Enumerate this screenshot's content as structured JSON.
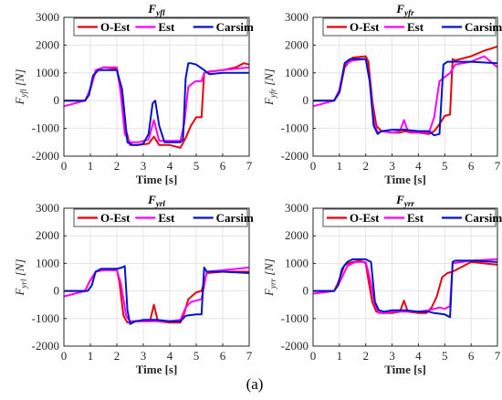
{
  "caption": "(a)",
  "colors": {
    "O-Est": "#e8000b",
    "Est": "#ff00ff",
    "Carsim": "#0015c8"
  },
  "chart_data": [
    {
      "type": "line",
      "title": "F_yfl",
      "xlabel": "Time [s]",
      "ylabel": "F_yfl [N]",
      "xlim": [
        0,
        7
      ],
      "ylim": [
        -2000,
        3000
      ],
      "xticks": [
        "0",
        "1",
        "2",
        "3",
        "4",
        "5",
        "6",
        "7"
      ],
      "yticks": [
        "-2000",
        "-1000",
        "0",
        "1000",
        "2000",
        "3000"
      ],
      "grid": true,
      "legend": "top, horizontal",
      "series": [
        {
          "name": "O-Est",
          "x": [
            0,
            0.8,
            0.95,
            1.2,
            1.5,
            2.0,
            2.1,
            2.3,
            2.5,
            2.8,
            3.2,
            3.4,
            3.6,
            4.0,
            4.4,
            4.6,
            4.8,
            5.0,
            5.2,
            5.3,
            5.5,
            6.0,
            6.5,
            6.8,
            7.0
          ],
          "y": [
            0,
            0,
            300,
            1050,
            1200,
            1150,
            600,
            -900,
            -1600,
            -1600,
            -1550,
            -1300,
            -1600,
            -1600,
            -1700,
            -1350,
            -900,
            -600,
            -600,
            1000,
            1050,
            1100,
            1200,
            1350,
            1300
          ]
        },
        {
          "name": "Est",
          "x": [
            0,
            0.8,
            1.0,
            1.2,
            1.5,
            2.0,
            2.15,
            2.3,
            2.5,
            2.8,
            3.2,
            3.4,
            3.6,
            4.0,
            4.4,
            4.55,
            4.7,
            4.9,
            5.0,
            5.2,
            5.3,
            5.6,
            6.0,
            6.5,
            7.0
          ],
          "y": [
            -200,
            0,
            400,
            1100,
            1200,
            1200,
            300,
            -1200,
            -1500,
            -1500,
            -1400,
            -700,
            -1450,
            -1450,
            -1450,
            -800,
            500,
            650,
            700,
            700,
            1000,
            1050,
            1100,
            1150,
            1200
          ]
        },
        {
          "name": "Carsim",
          "x": [
            0,
            0.8,
            0.95,
            1.1,
            1.3,
            2.0,
            2.2,
            2.4,
            2.6,
            2.8,
            3.0,
            3.2,
            3.35,
            3.45,
            3.6,
            3.8,
            4.0,
            4.4,
            4.5,
            4.6,
            4.7,
            4.8,
            5.0,
            5.3,
            5.5,
            6.0,
            7.0
          ],
          "y": [
            0,
            0,
            200,
            900,
            1100,
            1100,
            400,
            -1500,
            -1600,
            -1600,
            -1550,
            -1200,
            -100,
            0,
            -900,
            -1500,
            -1500,
            -1500,
            -1400,
            800,
            1350,
            1350,
            1300,
            1100,
            950,
            1000,
            1000
          ]
        }
      ]
    },
    {
      "type": "line",
      "title": "F_yfr",
      "xlabel": "Time [s]",
      "ylabel": "F_yfr [N]",
      "xlim": [
        0,
        7
      ],
      "ylim": [
        -2000,
        3000
      ],
      "xticks": [
        "0",
        "1",
        "2",
        "3",
        "4",
        "5",
        "6",
        "7"
      ],
      "yticks": [
        "-2000",
        "-1000",
        "0",
        "1000",
        "2000",
        "3000"
      ],
      "grid": true,
      "legend": "top, horizontal",
      "series": [
        {
          "name": "O-Est",
          "x": [
            0,
            0.8,
            1.0,
            1.2,
            1.5,
            2.0,
            2.1,
            2.25,
            2.4,
            2.6,
            3.0,
            3.3,
            3.5,
            3.7,
            4.0,
            4.4,
            4.6,
            4.8,
            5.0,
            5.2,
            5.3,
            5.4,
            6.0,
            6.5,
            7.0
          ],
          "y": [
            0,
            0,
            300,
            1200,
            1550,
            1600,
            1400,
            0,
            -900,
            -1100,
            -1150,
            -1150,
            -1100,
            -1150,
            -1150,
            -1200,
            -1100,
            -850,
            -550,
            -500,
            1500,
            1450,
            1600,
            1800,
            1950
          ]
        },
        {
          "name": "Est",
          "x": [
            0,
            0.8,
            1.0,
            1.2,
            1.5,
            2.0,
            2.15,
            2.3,
            2.45,
            2.6,
            3.0,
            3.3,
            3.45,
            3.6,
            4.0,
            4.4,
            4.6,
            4.8,
            5.0,
            5.2,
            5.4,
            6.0,
            6.5,
            7.0
          ],
          "y": [
            -200,
            0,
            400,
            1300,
            1450,
            1500,
            800,
            -700,
            -1150,
            -1100,
            -1150,
            -1100,
            -700,
            -1100,
            -1150,
            -1150,
            -600,
            700,
            850,
            1000,
            1300,
            1400,
            1600,
            1200
          ]
        },
        {
          "name": "Carsim",
          "x": [
            0,
            0.8,
            1.0,
            1.2,
            1.4,
            2.0,
            2.15,
            2.3,
            2.45,
            2.6,
            3.0,
            3.5,
            4.0,
            4.4,
            4.6,
            4.8,
            4.95,
            5.1,
            5.3,
            6.0,
            7.0
          ],
          "y": [
            0,
            0,
            300,
            1350,
            1500,
            1500,
            700,
            -900,
            -1200,
            -1100,
            -1050,
            -1050,
            -1100,
            -1100,
            -1250,
            -1200,
            1300,
            1400,
            1400,
            1400,
            1350
          ]
        }
      ]
    },
    {
      "type": "line",
      "title": "F_yrl",
      "xlabel": "Time [s]",
      "ylabel": "F_yrl [N]",
      "xlim": [
        0,
        7
      ],
      "ylim": [
        -2000,
        3000
      ],
      "xticks": [
        "0",
        "1",
        "2",
        "3",
        "4",
        "5",
        "6",
        "7"
      ],
      "yticks": [
        "-2000",
        "-1000",
        "0",
        "1000",
        "2000",
        "3000"
      ],
      "grid": true,
      "legend": "top, horizontal",
      "series": [
        {
          "name": "O-Est",
          "x": [
            0,
            0.8,
            0.95,
            1.2,
            1.5,
            2.0,
            2.1,
            2.25,
            2.4,
            2.6,
            3.0,
            3.25,
            3.4,
            3.55,
            4.0,
            4.4,
            4.55,
            4.7,
            5.0,
            5.2,
            5.4,
            6.0,
            7.0
          ],
          "y": [
            0,
            0,
            300,
            700,
            800,
            800,
            300,
            -900,
            -1150,
            -1100,
            -1100,
            -1100,
            -500,
            -1100,
            -1150,
            -1150,
            -800,
            -300,
            -50,
            0,
            650,
            700,
            700
          ]
        },
        {
          "name": "Est",
          "x": [
            0,
            0.8,
            1.0,
            1.2,
            1.5,
            2.0,
            2.15,
            2.35,
            2.5,
            2.7,
            3.0,
            3.5,
            4.0,
            4.4,
            4.6,
            4.8,
            5.0,
            5.2,
            5.4,
            6.0,
            7.0
          ],
          "y": [
            -200,
            0,
            400,
            700,
            750,
            750,
            300,
            -900,
            -1100,
            -1100,
            -1100,
            -1100,
            -1100,
            -1050,
            -600,
            -400,
            -350,
            -300,
            700,
            750,
            850
          ]
        },
        {
          "name": "Carsim",
          "x": [
            0,
            0.9,
            1.05,
            1.2,
            1.4,
            2.0,
            2.2,
            2.3,
            2.4,
            2.5,
            2.7,
            3.0,
            3.5,
            4.0,
            4.4,
            4.6,
            5.0,
            5.2,
            5.3,
            5.4,
            6.0,
            7.0
          ],
          "y": [
            0,
            0,
            200,
            700,
            800,
            800,
            850,
            900,
            -700,
            -1200,
            -1100,
            -1050,
            -1050,
            -1100,
            -1100,
            -900,
            -850,
            -850,
            850,
            700,
            700,
            650
          ]
        }
      ]
    },
    {
      "type": "line",
      "title": "F_yrr",
      "xlabel": "Time [s]",
      "ylabel": "F_yrr [N]",
      "xlim": [
        0,
        7
      ],
      "ylim": [
        -2000,
        3000
      ],
      "xticks": [
        "0",
        "1",
        "2",
        "3",
        "4",
        "5",
        "6",
        "7"
      ],
      "yticks": [
        "-2000",
        "-1000",
        "0",
        "1000",
        "2000",
        "3000"
      ],
      "grid": true,
      "legend": "top, horizontal",
      "series": [
        {
          "name": "O-Est",
          "x": [
            0,
            0.8,
            0.95,
            1.2,
            1.5,
            1.8,
            2.0,
            2.1,
            2.25,
            2.4,
            2.6,
            3.0,
            3.3,
            3.45,
            3.6,
            4.0,
            4.3,
            4.5,
            4.7,
            4.9,
            5.1,
            5.3,
            6.0,
            7.0
          ],
          "y": [
            0,
            0,
            300,
            950,
            1050,
            1100,
            1000,
            400,
            -400,
            -750,
            -800,
            -800,
            -750,
            -350,
            -750,
            -800,
            -800,
            -600,
            -200,
            500,
            650,
            700,
            1050,
            950
          ]
        },
        {
          "name": "Est",
          "x": [
            0,
            0.8,
            1.0,
            1.3,
            1.6,
            2.0,
            2.15,
            2.35,
            2.5,
            2.7,
            3.0,
            3.5,
            4.0,
            4.4,
            4.6,
            4.8,
            5.0,
            5.2,
            5.3,
            6.0,
            7.0
          ],
          "y": [
            -100,
            0,
            300,
            900,
            1050,
            1050,
            500,
            -500,
            -800,
            -800,
            -750,
            -750,
            -750,
            -700,
            -650,
            -600,
            -650,
            -550,
            1000,
            1100,
            1150
          ]
        },
        {
          "name": "Carsim",
          "x": [
            0,
            0.8,
            0.95,
            1.1,
            1.3,
            1.5,
            2.0,
            2.2,
            2.35,
            2.5,
            2.7,
            3.0,
            3.5,
            4.0,
            4.4,
            4.6,
            5.0,
            5.2,
            5.3,
            5.4,
            6.0,
            7.0
          ],
          "y": [
            0,
            0,
            200,
            800,
            1050,
            1150,
            1150,
            1050,
            -400,
            -700,
            -750,
            -700,
            -700,
            -750,
            -750,
            -800,
            -850,
            -950,
            1050,
            1100,
            1100,
            1050
          ]
        }
      ]
    }
  ]
}
